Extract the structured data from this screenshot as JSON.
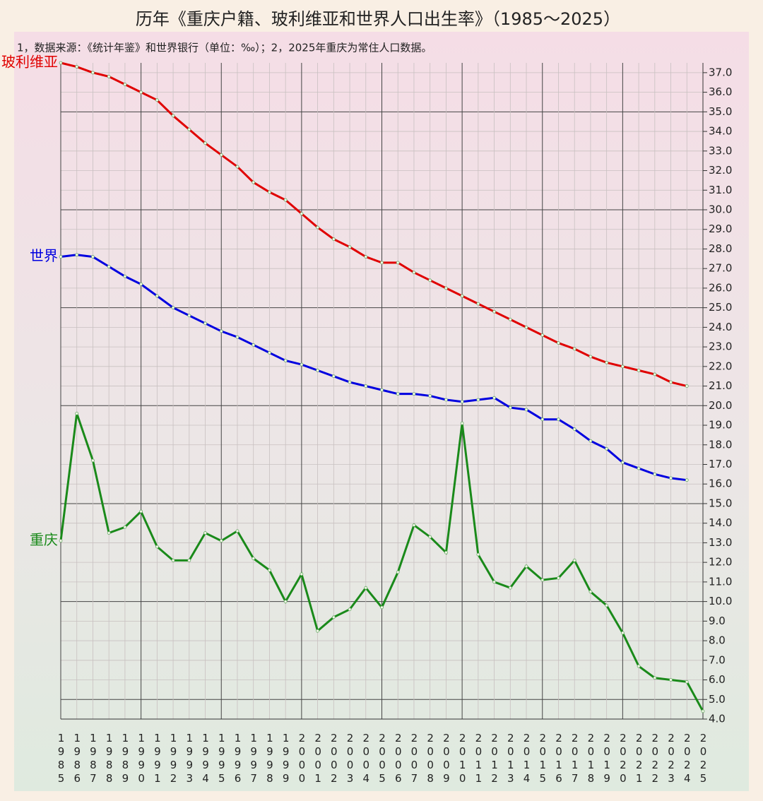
{
  "chart_data": {
    "type": "line",
    "title": "历年《重庆户籍、玻利维亚和世界人口出生率》（1985～2025）",
    "subtitle": "1，数据来源：《统计年鉴》和世界银行（单位：‰）；2，2025年重庆为常住人口数据。",
    "x": [
      1985,
      1986,
      1987,
      1988,
      1989,
      1990,
      1991,
      1992,
      1993,
      1994,
      1995,
      1996,
      1997,
      1998,
      1999,
      2000,
      2001,
      2002,
      2003,
      2004,
      2005,
      2006,
      2007,
      2008,
      2009,
      2010,
      2011,
      2012,
      2013,
      2014,
      2015,
      2016,
      2017,
      2018,
      2019,
      2020,
      2021,
      2022,
      2023,
      2024,
      2025
    ],
    "xlim": [
      1985,
      2025
    ],
    "series": [
      {
        "name": "玻利维亚",
        "color": "#e00000",
        "values": [
          37.5,
          37.3,
          37.0,
          36.8,
          36.4,
          36.0,
          35.6,
          34.8,
          34.1,
          33.4,
          32.8,
          32.2,
          31.4,
          30.9,
          30.5,
          29.8,
          29.1,
          28.5,
          28.1,
          27.6,
          27.3,
          27.3,
          26.8,
          26.4,
          26.0,
          25.6,
          25.2,
          24.8,
          24.4,
          24.0,
          23.6,
          23.2,
          22.9,
          22.5,
          22.2,
          22.0,
          21.8,
          21.6,
          21.2,
          21.0,
          null
        ]
      },
      {
        "name": "世界",
        "color": "#0000e0",
        "values": [
          27.6,
          27.7,
          27.6,
          27.1,
          26.6,
          26.2,
          25.6,
          25.0,
          24.6,
          24.2,
          23.8,
          23.5,
          23.1,
          22.7,
          22.3,
          22.1,
          21.8,
          21.5,
          21.2,
          21.0,
          20.8,
          20.6,
          20.6,
          20.5,
          20.3,
          20.2,
          20.3,
          20.4,
          19.9,
          19.8,
          19.3,
          19.3,
          18.8,
          18.2,
          17.8,
          17.1,
          16.8,
          16.5,
          16.3,
          16.2,
          null
        ]
      },
      {
        "name": "重庆",
        "color": "#1a8a1a",
        "values": [
          13.1,
          19.6,
          17.2,
          13.5,
          13.8,
          14.6,
          12.8,
          12.1,
          12.1,
          13.5,
          13.1,
          13.6,
          12.2,
          11.6,
          10.0,
          11.4,
          8.5,
          9.2,
          9.6,
          10.7,
          9.7,
          11.5,
          13.9,
          13.3,
          12.5,
          19.1,
          12.4,
          11.0,
          10.7,
          11.8,
          11.1,
          11.2,
          12.1,
          10.5,
          9.8,
          8.4,
          6.7,
          6.1,
          6.0,
          5.9,
          4.4
        ]
      }
    ],
    "ylim": [
      4,
      37.5
    ],
    "yticks": [
      {
        "value": 4,
        "label": "4.0"
      },
      {
        "value": 5,
        "label": "5.0"
      },
      {
        "value": 6,
        "label": "6.0"
      },
      {
        "value": 7,
        "label": "7.0"
      },
      {
        "value": 8,
        "label": "8.0"
      },
      {
        "value": 9,
        "label": "9.0"
      },
      {
        "value": 10,
        "label": "10.0"
      },
      {
        "value": 11,
        "label": "11.0"
      },
      {
        "value": 12,
        "label": "12.0"
      },
      {
        "value": 13,
        "label": "13.0"
      },
      {
        "value": 14,
        "label": "14.0"
      },
      {
        "value": 15,
        "label": "15.0"
      },
      {
        "value": 16,
        "label": "16.0"
      },
      {
        "value": 17,
        "label": "17.0"
      },
      {
        "value": 18,
        "label": "18.0"
      },
      {
        "value": 19,
        "label": "19.0"
      },
      {
        "value": 20,
        "label": "20.0"
      },
      {
        "value": 21,
        "label": "21.0"
      },
      {
        "value": 22,
        "label": "22.0"
      },
      {
        "value": 23,
        "label": "23.0"
      },
      {
        "value": 24,
        "label": "24.0"
      },
      {
        "value": 25,
        "label": "25.0"
      },
      {
        "value": 26,
        "label": "26.0"
      },
      {
        "value": 27,
        "label": "27.0"
      },
      {
        "value": 28,
        "label": "28.0"
      },
      {
        "value": 29,
        "label": "29.0"
      },
      {
        "value": 30,
        "label": "30.0"
      },
      {
        "value": 31,
        "label": "31.0"
      },
      {
        "value": 32,
        "label": "32.0"
      },
      {
        "value": 33,
        "label": "33.0"
      },
      {
        "value": 34,
        "label": "34.0"
      },
      {
        "value": 35,
        "label": "35.0"
      },
      {
        "value": 36,
        "label": "36.0"
      },
      {
        "value": 37,
        "label": "37.0"
      }
    ],
    "y_axis_side": "right",
    "grid": true
  }
}
